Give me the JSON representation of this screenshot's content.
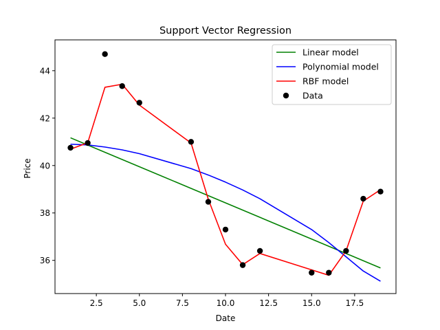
{
  "chart_data": {
    "type": "line",
    "title": "Support Vector Regression",
    "xlabel": "Date",
    "ylabel": "Price",
    "xlim": [
      0.1,
      19.9
    ],
    "ylim": [
      34.6,
      45.3
    ],
    "xticks": [
      2.5,
      5.0,
      7.5,
      10.0,
      12.5,
      15.0,
      17.5
    ],
    "xtick_labels": [
      "2.5",
      "5.0",
      "7.5",
      "10.0",
      "12.5",
      "15.0",
      "17.5"
    ],
    "yticks": [
      36,
      38,
      40,
      42,
      44
    ],
    "ytick_labels": [
      "36",
      "38",
      "40",
      "42",
      "44"
    ],
    "grid": false,
    "legend_position": "top-right",
    "series": [
      {
        "name": "Linear model",
        "kind": "line",
        "color": "#008000",
        "x": [
          1,
          19
        ],
        "y": [
          41.17,
          35.68
        ]
      },
      {
        "name": "Polynomial model",
        "kind": "line",
        "color": "#0000ff",
        "x": [
          1,
          2,
          3,
          4,
          5,
          8,
          9,
          10,
          11,
          12,
          15,
          16,
          17,
          18,
          19
        ],
        "y": [
          40.9,
          40.87,
          40.78,
          40.66,
          40.5,
          39.87,
          39.6,
          39.3,
          38.97,
          38.6,
          37.3,
          36.75,
          36.15,
          35.55,
          35.12
        ]
      },
      {
        "name": "RBF model",
        "kind": "line",
        "color": "#ff0000",
        "x": [
          1,
          2,
          3,
          4,
          5,
          8,
          9,
          10,
          11,
          12,
          15,
          16,
          17,
          18,
          19
        ],
        "y": [
          40.69,
          40.96,
          43.3,
          43.43,
          42.55,
          40.95,
          38.58,
          36.68,
          35.82,
          36.29,
          35.6,
          35.37,
          36.4,
          38.5,
          38.98
        ]
      },
      {
        "name": "Data",
        "kind": "scatter",
        "color": "#000000",
        "x": [
          1,
          2,
          3,
          4,
          5,
          8,
          9,
          10,
          11,
          12,
          15,
          16,
          17,
          18,
          19
        ],
        "y": [
          40.75,
          40.95,
          44.7,
          43.35,
          42.65,
          41.0,
          38.47,
          37.3,
          35.8,
          36.4,
          35.48,
          35.48,
          36.4,
          38.6,
          38.9
        ]
      }
    ]
  }
}
